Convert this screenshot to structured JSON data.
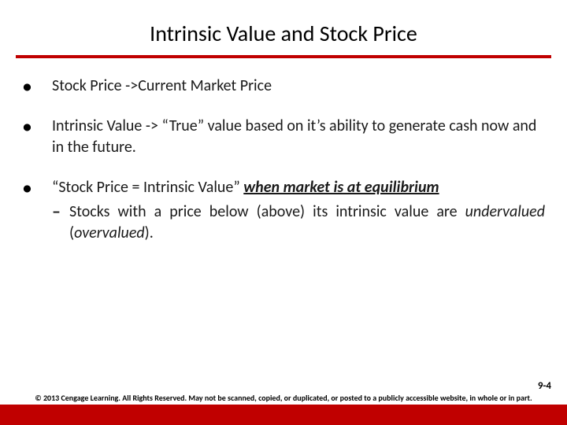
{
  "colors": {
    "accent": "#c00000",
    "text": "#1a1a1a",
    "background": "#ffffff"
  },
  "title": "Intrinsic Value and Stock Price",
  "bullets": {
    "b1": "Stock Price  ->Current Market Price",
    "b2": "Intrinsic Value -> “True” value based on it’s ability to generate cash now and in the future.",
    "b3_lead": "“Stock Price = Intrinsic Value” ",
    "b3_ubi": "when market is at equilibrium",
    "b3_sub_a": "Stocks with a price below (above) its intrinsic value are ",
    "b3_sub_ital1": "undervalued",
    "b3_sub_mid": " (",
    "b3_sub_ital2": "overvalued",
    "b3_sub_end": ")."
  },
  "page_num": "9-4",
  "copyright": "© 2013 Cengage Learning. All Rights Reserved. May not be scanned, copied, or duplicated, or posted to a publicly accessible website, in whole or in part."
}
